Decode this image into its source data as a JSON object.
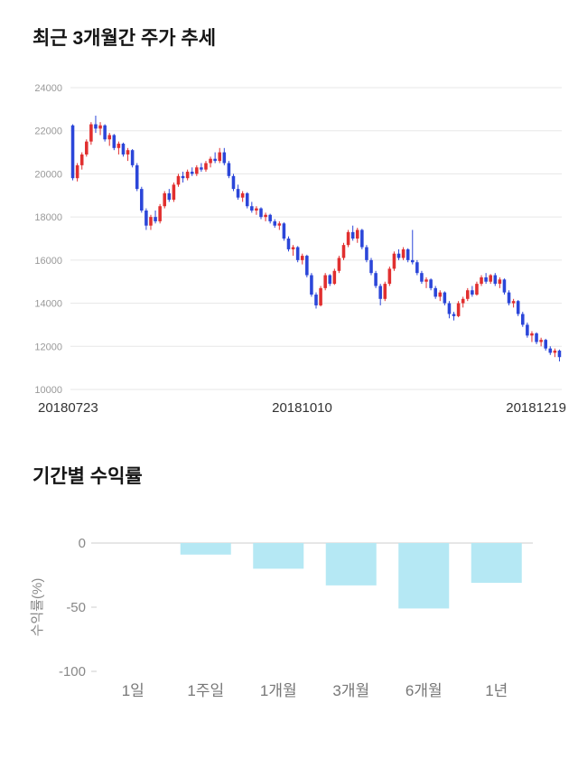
{
  "chart_data": [
    {
      "type": "candlestick",
      "title": "최근 3개월간 주가 추세",
      "x_labels": [
        "20180723",
        "20181010",
        "20181219"
      ],
      "y_ticks": [
        24000,
        22000,
        20000,
        18000,
        16000,
        14000,
        12000,
        10000
      ],
      "ylim": [
        10000,
        24000
      ],
      "grid": true,
      "grid_color": "#e7e7e7",
      "tick_color": "#999999",
      "up_color": "#e12f2f",
      "down_color": "#2b46d9",
      "candles": [
        [
          22250,
          22300,
          19700,
          19800
        ],
        [
          19800,
          20500,
          19650,
          20400
        ],
        [
          20400,
          21000,
          20200,
          20900
        ],
        [
          20900,
          21600,
          20800,
          21500
        ],
        [
          21500,
          22400,
          21350,
          22300
        ],
        [
          22300,
          22700,
          21900,
          22100
        ],
        [
          22100,
          22400,
          21800,
          22250
        ],
        [
          22250,
          22300,
          21500,
          21600
        ],
        [
          21600,
          21900,
          21300,
          21800
        ],
        [
          21800,
          21850,
          21100,
          21200
        ],
        [
          21200,
          21500,
          20900,
          21400
        ],
        [
          21400,
          21450,
          20800,
          20900
        ],
        [
          20900,
          21200,
          20600,
          21100
        ],
        [
          21100,
          21150,
          20300,
          20400
        ],
        [
          20400,
          20500,
          19200,
          19300
        ],
        [
          19300,
          19400,
          18200,
          18300
        ],
        [
          18300,
          18400,
          17400,
          17600
        ],
        [
          17600,
          18100,
          17400,
          18000
        ],
        [
          18000,
          18300,
          17700,
          17800
        ],
        [
          17800,
          18600,
          17700,
          18500
        ],
        [
          18500,
          19200,
          18400,
          19100
        ],
        [
          19100,
          19300,
          18700,
          18800
        ],
        [
          18800,
          19600,
          18700,
          19500
        ],
        [
          19500,
          20000,
          19400,
          19900
        ],
        [
          19900,
          20100,
          19600,
          19800
        ],
        [
          19800,
          20200,
          19700,
          20100
        ],
        [
          20100,
          20300,
          19900,
          20000
        ],
        [
          20000,
          20400,
          19900,
          20300
        ],
        [
          20300,
          20500,
          20100,
          20200
        ],
        [
          20200,
          20600,
          20100,
          20500
        ],
        [
          20500,
          20800,
          20300,
          20700
        ],
        [
          20700,
          21000,
          20500,
          20600
        ],
        [
          20600,
          21200,
          20500,
          21000
        ],
        [
          21000,
          21200,
          20400,
          20500
        ],
        [
          20500,
          20600,
          19800,
          19900
        ],
        [
          19900,
          20000,
          19200,
          19300
        ],
        [
          19300,
          19500,
          18800,
          18900
        ],
        [
          18900,
          19200,
          18700,
          19100
        ],
        [
          19100,
          19150,
          18400,
          18500
        ],
        [
          18500,
          18700,
          18200,
          18300
        ],
        [
          18300,
          18500,
          18100,
          18400
        ],
        [
          18400,
          18450,
          17900,
          18000
        ],
        [
          18000,
          18200,
          17800,
          18100
        ],
        [
          18100,
          18150,
          17700,
          17800
        ],
        [
          17800,
          17900,
          17500,
          17600
        ],
        [
          17600,
          17800,
          17400,
          17700
        ],
        [
          17700,
          17750,
          16900,
          17000
        ],
        [
          17000,
          17100,
          16400,
          16500
        ],
        [
          16500,
          16700,
          16200,
          16600
        ],
        [
          16600,
          16650,
          15900,
          16000
        ],
        [
          16000,
          16300,
          15800,
          16200
        ],
        [
          16200,
          16250,
          15200,
          15300
        ],
        [
          15300,
          15400,
          14300,
          14400
        ],
        [
          14400,
          14500,
          13750,
          13900
        ],
        [
          13900,
          14800,
          13850,
          14700
        ],
        [
          14700,
          15400,
          14600,
          15300
        ],
        [
          15300,
          15350,
          14800,
          14900
        ],
        [
          14900,
          15600,
          14850,
          15500
        ],
        [
          15500,
          16200,
          15400,
          16100
        ],
        [
          16100,
          16800,
          16000,
          16700
        ],
        [
          16700,
          17400,
          16600,
          17300
        ],
        [
          17300,
          17600,
          16900,
          17000
        ],
        [
          17000,
          17500,
          16800,
          17400
        ],
        [
          17400,
          17450,
          16500,
          16600
        ],
        [
          16600,
          16700,
          15900,
          16000
        ],
        [
          16000,
          16100,
          15300,
          15400
        ],
        [
          15400,
          15500,
          14700,
          14800
        ],
        [
          14800,
          14900,
          13900,
          14200
        ],
        [
          14200,
          15000,
          14100,
          14900
        ],
        [
          14900,
          15700,
          14800,
          15600
        ],
        [
          15600,
          16400,
          15500,
          16300
        ],
        [
          16300,
          16500,
          16000,
          16100
        ],
        [
          16100,
          16600,
          16000,
          16500
        ],
        [
          16500,
          16550,
          15900,
          16000
        ],
        [
          16000,
          17400,
          15800,
          15900
        ],
        [
          15900,
          16000,
          15300,
          15400
        ],
        [
          15400,
          15500,
          14900,
          15000
        ],
        [
          15000,
          15200,
          14700,
          15100
        ],
        [
          15100,
          15150,
          14600,
          14700
        ],
        [
          14700,
          14800,
          14200,
          14300
        ],
        [
          14300,
          14600,
          14100,
          14500
        ],
        [
          14500,
          14550,
          13900,
          14000
        ],
        [
          14000,
          14100,
          13300,
          13500
        ],
        [
          13500,
          13600,
          13200,
          13400
        ],
        [
          13400,
          14100,
          13350,
          14000
        ],
        [
          14000,
          14300,
          13800,
          14200
        ],
        [
          14200,
          14700,
          14100,
          14600
        ],
        [
          14600,
          14800,
          14300,
          14400
        ],
        [
          14400,
          15000,
          14350,
          14900
        ],
        [
          14900,
          15300,
          14800,
          15200
        ],
        [
          15200,
          15400,
          14900,
          15000
        ],
        [
          15000,
          15350,
          14900,
          15300
        ],
        [
          15300,
          15400,
          14800,
          14900
        ],
        [
          14900,
          15200,
          14700,
          15100
        ],
        [
          15100,
          15150,
          14400,
          14500
        ],
        [
          14500,
          14600,
          13900,
          14000
        ],
        [
          14000,
          14200,
          13800,
          14100
        ],
        [
          14100,
          14150,
          13400,
          13500
        ],
        [
          13500,
          13600,
          12900,
          13000
        ],
        [
          13000,
          13100,
          12400,
          12500
        ],
        [
          12500,
          12700,
          12200,
          12600
        ],
        [
          12600,
          12650,
          12100,
          12200
        ],
        [
          12200,
          12400,
          12000,
          12300
        ],
        [
          12300,
          12350,
          11800,
          11900
        ],
        [
          11900,
          12000,
          11600,
          11700
        ],
        [
          11700,
          11900,
          11500,
          11800
        ],
        [
          11800,
          11850,
          11300,
          11500
        ]
      ]
    },
    {
      "type": "bar",
      "title": "기간별 수익률",
      "ylabel": "수익률(%)",
      "categories": [
        "1일",
        "1주일",
        "1개월",
        "3개월",
        "6개월",
        "1년"
      ],
      "values": [
        0,
        -9,
        -20,
        -33,
        -51,
        -31
      ],
      "y_ticks": [
        0,
        -50,
        -100
      ],
      "ylim": [
        -100,
        0
      ],
      "bar_color": "#b5e8f4",
      "axis_color": "#cccccc",
      "tick_text_color": "#888888",
      "category_text_color": "#777777"
    }
  ]
}
